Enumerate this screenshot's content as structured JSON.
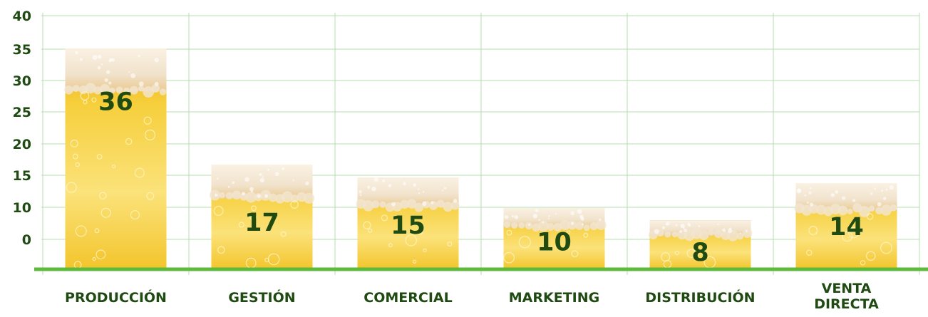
{
  "chart_data": {
    "type": "bar",
    "categories": [
      "PRODUCCIÓN",
      "GESTIÓN",
      "COMERCIAL",
      "MARKETING",
      "DISTRIBUCIÓN",
      "VENTA DIRECTA"
    ],
    "values": [
      36,
      17,
      15,
      10,
      8,
      14
    ],
    "data_labels": [
      "36",
      "17",
      "15",
      "10",
      "8",
      "14"
    ],
    "y_ticks": [
      "0",
      "10",
      "15",
      "20",
      "25",
      "30",
      "35",
      "40"
    ],
    "title": "",
    "xlabel": "",
    "ylabel": "",
    "grid": true,
    "legend": "none"
  },
  "colors": {
    "grid": "#b5ddb0",
    "axis": "#5dba3b",
    "text": "#1f4a12",
    "beer_light": "#fbe27a",
    "beer_mid": "#f2c02a",
    "beer_dark": "#d99a0e",
    "foam": "#f7ece0"
  }
}
